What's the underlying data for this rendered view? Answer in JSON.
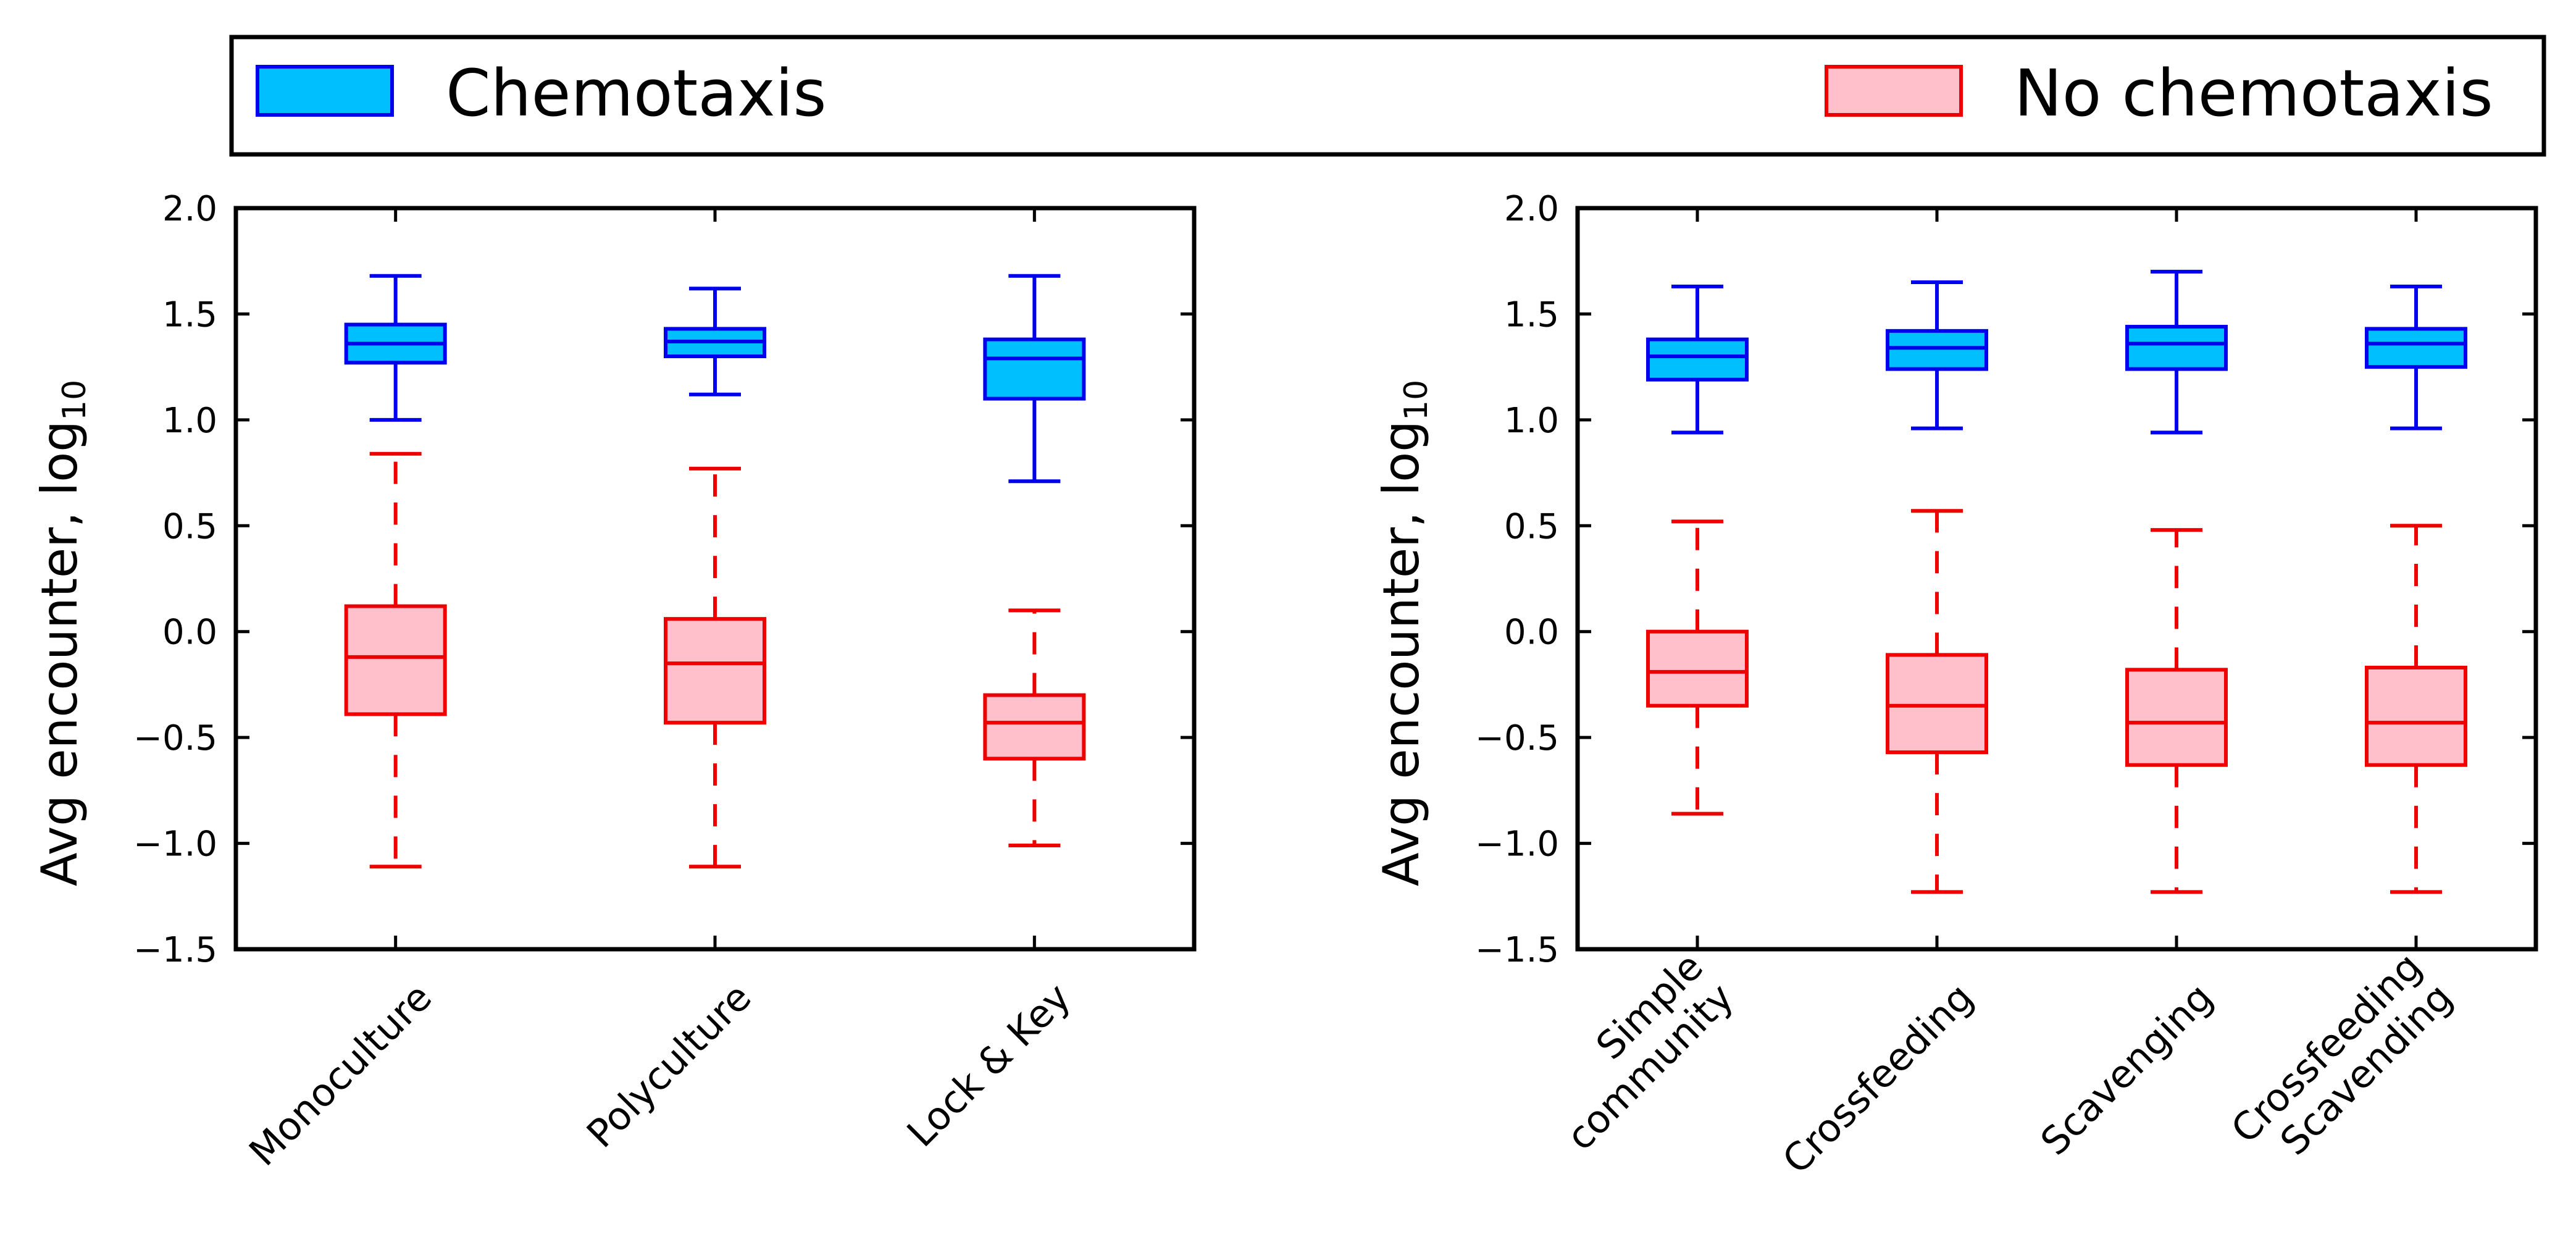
{
  "legend": {
    "items": [
      {
        "label": "Chemotaxis",
        "key": "chemo"
      },
      {
        "label": "No chemotaxis",
        "key": "nochemo"
      }
    ]
  },
  "colors": {
    "chemo_fill": "#00bfff",
    "chemo_edge": "#0000ee",
    "nochemo_fill": "#ffc0cb",
    "nochemo_edge": "#ee0000"
  },
  "chart_data": [
    {
      "type": "boxplot",
      "ylabel_main": "Avg encounter, log",
      "ylabel_sub": "10",
      "ylim": [
        -1.5,
        2.0
      ],
      "yticks": [
        "2.0",
        "1.5",
        "1.0",
        "0.5",
        "0.0",
        "−0.5",
        "−1.0",
        "−1.5"
      ],
      "categories": [
        [
          "Monoculture"
        ],
        [
          "Polyculture"
        ],
        [
          "Lock & Key"
        ]
      ],
      "series": [
        {
          "key": "chemo",
          "boxes": [
            {
              "whislo": 1.0,
              "q1": 1.27,
              "med": 1.36,
              "q3": 1.45,
              "whishi": 1.68
            },
            {
              "whislo": 1.12,
              "q1": 1.3,
              "med": 1.37,
              "q3": 1.43,
              "whishi": 1.62
            },
            {
              "whislo": 0.71,
              "q1": 1.1,
              "med": 1.29,
              "q3": 1.38,
              "whishi": 1.68
            }
          ]
        },
        {
          "key": "nochemo",
          "boxes": [
            {
              "whislo": -1.11,
              "q1": -0.39,
              "med": -0.12,
              "q3": 0.12,
              "whishi": 0.84
            },
            {
              "whislo": -1.11,
              "q1": -0.43,
              "med": -0.15,
              "q3": 0.06,
              "whishi": 0.77
            },
            {
              "whislo": -1.01,
              "q1": -0.6,
              "med": -0.43,
              "q3": -0.3,
              "whishi": 0.1
            }
          ]
        }
      ]
    },
    {
      "type": "boxplot",
      "ylabel_main": "Avg encounter, log",
      "ylabel_sub": "10",
      "ylim": [
        -1.5,
        2.0
      ],
      "yticks": [
        "2.0",
        "1.5",
        "1.0",
        "0.5",
        "0.0",
        "−0.5",
        "−1.0",
        "−1.5"
      ],
      "categories": [
        [
          "Simple",
          "community"
        ],
        [
          "Crossfeeding"
        ],
        [
          "Scavenging"
        ],
        [
          "Crossfeeding",
          "Scavending"
        ]
      ],
      "series": [
        {
          "key": "chemo",
          "boxes": [
            {
              "whislo": 0.94,
              "q1": 1.19,
              "med": 1.3,
              "q3": 1.38,
              "whishi": 1.63
            },
            {
              "whislo": 0.96,
              "q1": 1.24,
              "med": 1.34,
              "q3": 1.42,
              "whishi": 1.65
            },
            {
              "whislo": 0.94,
              "q1": 1.24,
              "med": 1.36,
              "q3": 1.44,
              "whishi": 1.7
            },
            {
              "whislo": 0.96,
              "q1": 1.25,
              "med": 1.36,
              "q3": 1.43,
              "whishi": 1.63
            }
          ]
        },
        {
          "key": "nochemo",
          "boxes": [
            {
              "whislo": -0.86,
              "q1": -0.35,
              "med": -0.19,
              "q3": 0.0,
              "whishi": 0.52
            },
            {
              "whislo": -1.23,
              "q1": -0.57,
              "med": -0.35,
              "q3": -0.11,
              "whishi": 0.57
            },
            {
              "whislo": -1.23,
              "q1": -0.63,
              "med": -0.43,
              "q3": -0.18,
              "whishi": 0.48
            },
            {
              "whislo": -1.23,
              "q1": -0.63,
              "med": -0.43,
              "q3": -0.17,
              "whishi": 0.5
            }
          ]
        }
      ]
    }
  ]
}
